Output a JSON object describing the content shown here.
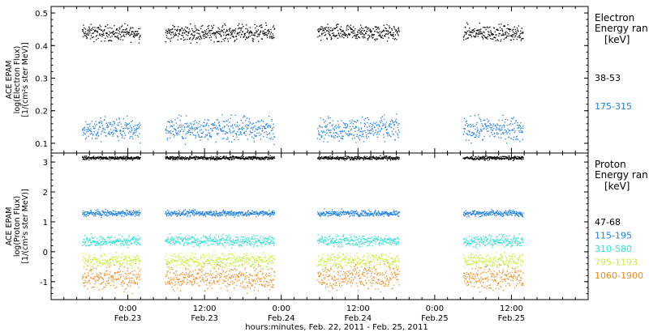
{
  "colors": {
    "black": "#000000",
    "blue": "#1f7fe0",
    "cyan": "#2ee0d4",
    "yellow": "#c8f03c",
    "orange": "#f08c1e"
  },
  "xaxis": {
    "label": "hours:minutes, Feb. 22, 2011 - Feb. 25, 2011",
    "range_hours": [
      -12,
      72
    ],
    "ticks": [
      {
        "hours": 0,
        "time": "0:00",
        "date": "Feb.23"
      },
      {
        "hours": 12,
        "time": "12:00",
        "date": "Feb.23"
      },
      {
        "hours": 24,
        "time": "0:00",
        "date": "Feb.24"
      },
      {
        "hours": 36,
        "time": "12:00",
        "date": "Feb.24"
      },
      {
        "hours": 48,
        "time": "0:00",
        "date": "Feb.25"
      },
      {
        "hours": 60,
        "time": "12:00",
        "date": "Feb.25"
      }
    ]
  },
  "chart_data": [
    {
      "type": "scatter",
      "panel": "electron",
      "ylabel_lines": [
        "ACE EPAM",
        "log(Electron Flux)",
        "[1/(cm²s ster MeV)]"
      ],
      "ylim": [
        0.07,
        0.52
      ],
      "yticks": [
        0.1,
        0.2,
        0.3,
        0.4,
        0.5
      ],
      "legend_title": [
        "Electron",
        "Energy ran",
        "[keV]"
      ],
      "data_segments_hours": [
        [
          -7.2,
          1.9
        ],
        [
          5.8,
          22.9
        ],
        [
          29.6,
          42.4
        ],
        [
          52.4,
          61.8
        ]
      ],
      "series": [
        {
          "name": "38-53",
          "color": "black",
          "mean": 0.44,
          "spread": 0.012
        },
        {
          "name": "175-315",
          "color": "blue",
          "mean": 0.145,
          "spread": 0.018
        }
      ]
    },
    {
      "type": "scatter",
      "panel": "proton",
      "ylabel_lines": [
        "ACE EPAM",
        "log(Proton Flux)",
        "[1/(cm²s ster MeV)]"
      ],
      "ylim": [
        -1.6,
        3.3
      ],
      "yticks": [
        -1,
        0,
        1,
        2,
        3
      ],
      "legend_title": [
        "Proton",
        "Energy ran",
        "[keV]"
      ],
      "data_segments_hours": [
        [
          -7.2,
          1.9
        ],
        [
          5.8,
          22.9
        ],
        [
          29.6,
          42.4
        ],
        [
          52.4,
          61.8
        ]
      ],
      "series": [
        {
          "name": "47-68",
          "color": "black",
          "mean": 3.15,
          "spread": 0.03
        },
        {
          "name": "115-195",
          "color": "blue",
          "mean": 1.3,
          "spread": 0.05
        },
        {
          "name": "310-580",
          "color": "cyan",
          "mean": 0.38,
          "spread": 0.09
        },
        {
          "name": "795-1193",
          "color": "yellow",
          "mean": -0.28,
          "spread": 0.12
        },
        {
          "name": "1060-1900",
          "color": "orange",
          "mean": -0.85,
          "spread": 0.2
        }
      ]
    }
  ]
}
